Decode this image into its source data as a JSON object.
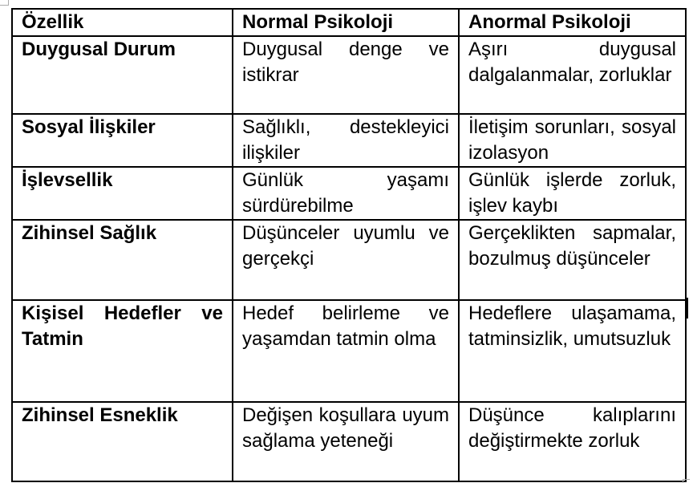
{
  "table": {
    "headers": [
      "Özellik",
      "Normal Psikoloji",
      "Anormal Psikoloji"
    ],
    "rows": [
      {
        "feature": "Duygusal Durum",
        "normal": "Duygusal denge ve istikrar",
        "abnormal": "Aşırı duygusal dalgalanmalar, zorluklar"
      },
      {
        "feature": "Sosyal İlişkiler",
        "normal": "Sağlıklı, destekleyici ilişkiler",
        "abnormal": "İletişim sorunları, sosyal izolasyon"
      },
      {
        "feature": "İşlevsellik",
        "normal": "Günlük yaşamı sürdürebilme",
        "abnormal": "Günlük işlerde zorluk, işlev kaybı"
      },
      {
        "feature": "Zihinsel Sağlık",
        "normal": "Düşünceler uyumlu ve gerçekçi",
        "abnormal": "Gerçeklikten sapmalar, bozulmuş düşünceler"
      },
      {
        "feature": "Kişisel Hedefler ve Tatmin",
        "normal": "Hedef belirleme ve yaşamdan tatmin olma",
        "abnormal": "Hedeflere ulaşamama, tatminsizlik, umutsuzluk"
      },
      {
        "feature": "Zihinsel Esneklik",
        "normal": "Değişen koşullara uyum sağlama yeteneği",
        "abnormal": "Düşünce kalıplarını değiştirmekte zorluk"
      }
    ]
  }
}
